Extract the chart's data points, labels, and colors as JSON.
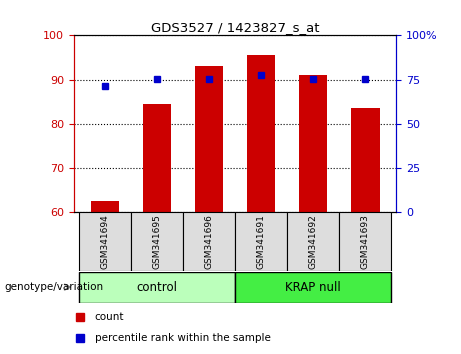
{
  "title": "GDS3527 / 1423827_s_at",
  "samples": [
    "GSM341694",
    "GSM341695",
    "GSM341696",
    "GSM341691",
    "GSM341692",
    "GSM341693"
  ],
  "red_values": [
    62.5,
    84.5,
    93.0,
    95.5,
    91.0,
    83.5
  ],
  "blue_values_left": [
    88.5,
    90.2,
    90.2,
    91.0,
    90.2,
    90.2
  ],
  "ylim_left": [
    60,
    100
  ],
  "ylim_right": [
    0,
    100
  ],
  "yticks_left": [
    60,
    70,
    80,
    90,
    100
  ],
  "yticks_right": [
    0,
    25,
    50,
    75,
    100
  ],
  "ytick_labels_right": [
    "0",
    "25",
    "50",
    "75",
    "100%"
  ],
  "ytick_labels_left": [
    "60",
    "70",
    "80",
    "90",
    "100"
  ],
  "groups": [
    {
      "label": "control",
      "indices": [
        0,
        1,
        2
      ],
      "color": "#bbffbb"
    },
    {
      "label": "KRAP null",
      "indices": [
        3,
        4,
        5
      ],
      "color": "#44ee44"
    }
  ],
  "bar_color": "#cc0000",
  "marker_color": "#0000cc",
  "bar_width": 0.55,
  "legend_items": [
    {
      "label": "count",
      "color": "#cc0000"
    },
    {
      "label": "percentile rank within the sample",
      "color": "#0000cc"
    }
  ],
  "xlabel_left": "genotype/variation",
  "tick_label_color_left": "#cc0000",
  "tick_label_color_right": "#0000cc"
}
